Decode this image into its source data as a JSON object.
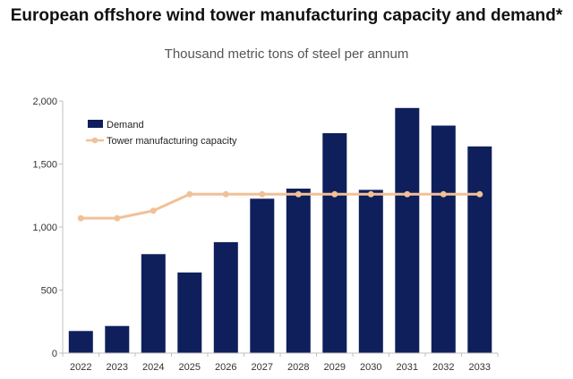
{
  "title": "European offshore wind tower manufacturing capacity and demand*",
  "subtitle": "Thousand metric tons of steel per annum",
  "colors": {
    "demand": "#0e1f5b",
    "capacity": "#f2c097",
    "axis": "#bfbfbf"
  },
  "legend": {
    "demand_label": "Demand",
    "capacity_label": "Tower manufacturing capacity"
  },
  "chart_data": {
    "type": "bar",
    "categories": [
      "2022",
      "2023",
      "2024",
      "2025",
      "2026",
      "2027",
      "2028",
      "2029",
      "2030",
      "2031",
      "2032",
      "2033"
    ],
    "series": [
      {
        "name": "Demand",
        "type": "bar",
        "values": [
          175,
          215,
          785,
          640,
          880,
          1225,
          1305,
          1745,
          1295,
          1945,
          1805,
          1640
        ]
      },
      {
        "name": "Tower manufacturing capacity",
        "type": "line",
        "values": [
          1070,
          1070,
          1130,
          1260,
          1260,
          1260,
          1260,
          1260,
          1260,
          1260,
          1260,
          1260
        ]
      }
    ],
    "ylim": [
      0,
      2000
    ],
    "yticks": [
      "0",
      "500",
      "1,000",
      "1,500",
      "2,000"
    ],
    "ytick_values": [
      0,
      500,
      1000,
      1500,
      2000
    ],
    "grid": false,
    "legend_position": "top-left"
  }
}
